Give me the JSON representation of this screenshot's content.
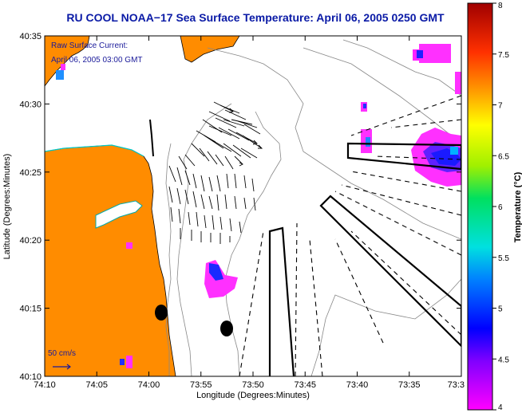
{
  "title": "RU COOL  NOAA−17  Sea Surface Temperature:  April 06, 2005 0250 GMT",
  "axes": {
    "xlabel": "Longitude (Degrees:Minutes)",
    "ylabel": "Latitude (Degrees:Minutes)",
    "x_ticks": [
      "74:10",
      "74:05",
      "74:00",
      "73:55",
      "73:50",
      "73:45",
      "73:40",
      "73:35",
      "73:3"
    ],
    "y_ticks": [
      "40:35",
      "40:30",
      "40:25",
      "40:20",
      "40:15",
      "40:10"
    ]
  },
  "legend": {
    "current_label_line1": "Raw Surface Current:",
    "current_label_line2": "April 06, 2005 03:00 GMT",
    "scale_label": "50 cm/s"
  },
  "colorbar": {
    "label": "Temperature (°C)",
    "min": 4,
    "max": 8,
    "ticks": [
      "8",
      "7.5",
      "7",
      "6.5",
      "6",
      "5.5",
      "5",
      "4.5",
      "4"
    ]
  },
  "colors": {
    "land": "#ff8c00",
    "title": "#0a1aa6",
    "contour": "#888888",
    "annotation_blue": "#1a1a9a"
  }
}
